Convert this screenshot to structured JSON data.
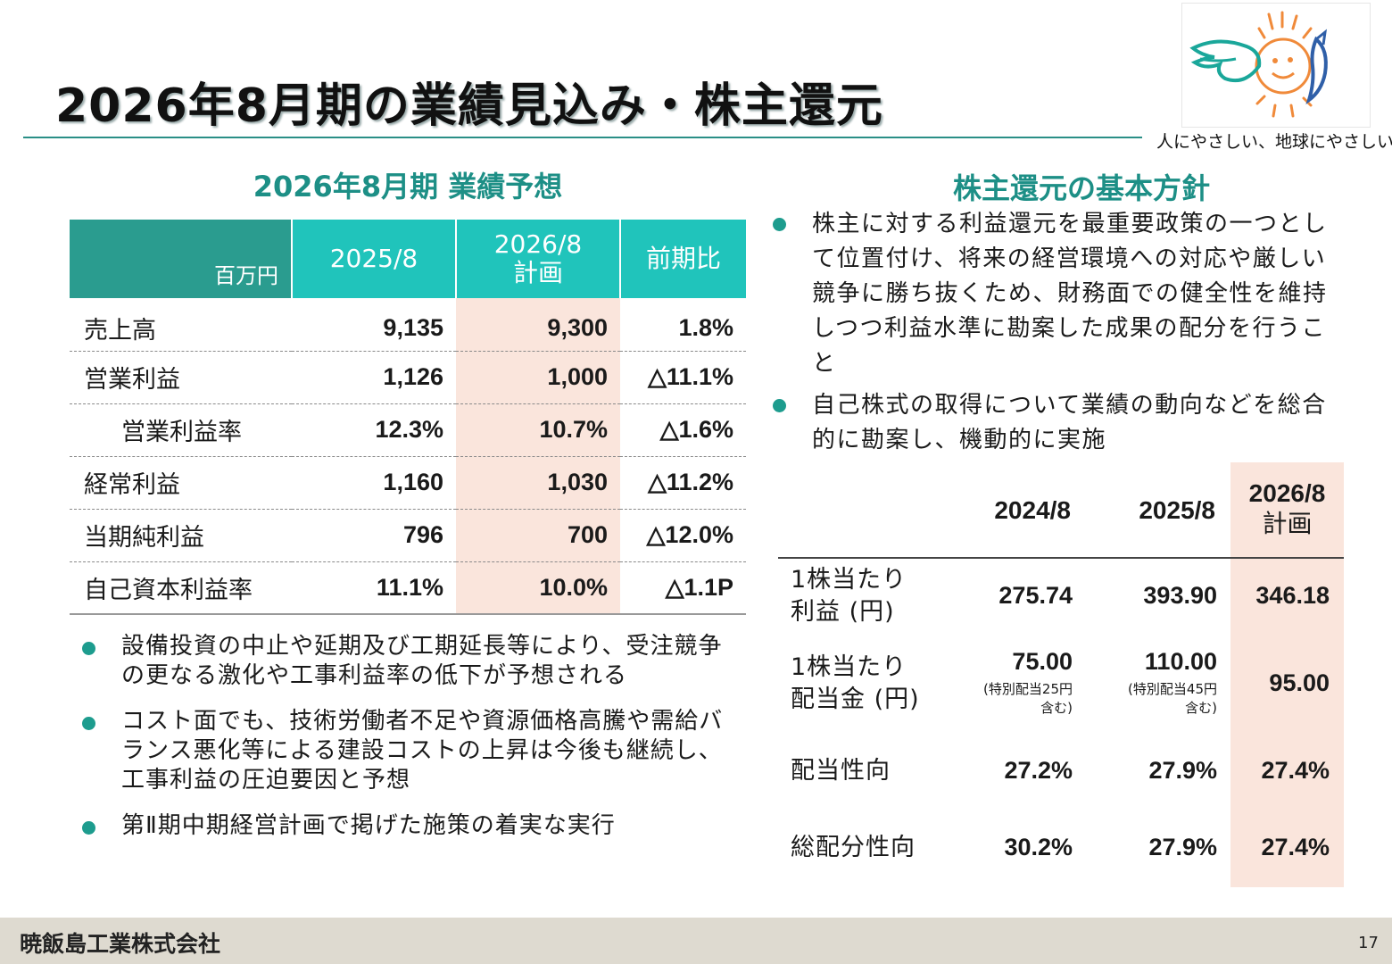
{
  "header": {
    "title": "2026年8月期の業績見込み・株主還元",
    "tagline": "人にやさしい、地球にやさしい。",
    "colors": {
      "accent": "#2a9c8f",
      "header_cell": "#20c4bb",
      "plan_highlight": "#fae5dc"
    }
  },
  "forecast": {
    "heading": "2026年8月期 業績予想",
    "columns": {
      "unit": "百万円",
      "c2025": "2025/8",
      "c2026_line1": "2026/8",
      "c2026_line2": "計画",
      "yoy": "前期比"
    },
    "rows": [
      {
        "label": "売上高",
        "v2025": "9,135",
        "v2026": "9,300",
        "yoy": "1.8%"
      },
      {
        "label": "営業利益",
        "v2025": "1,126",
        "v2026": "1,000",
        "yoy": "△11.1%"
      },
      {
        "label": "営業利益率",
        "v2025": "12.3%",
        "v2026": "10.7%",
        "yoy": "△1.6%"
      },
      {
        "label": "経常利益",
        "v2025": "1,160",
        "v2026": "1,030",
        "yoy": "△11.2%"
      },
      {
        "label": "当期純利益",
        "v2025": "796",
        "v2026": "700",
        "yoy": "△12.0%"
      },
      {
        "label": "自己資本利益率",
        "v2025": "11.1%",
        "v2026": "10.0%",
        "yoy": "△1.1P"
      }
    ],
    "bullets": [
      "設備投資の中止や延期及び工期延長等により、受注競争の更なる激化や工事利益率の低下が予想される",
      "コスト面でも、技術労働者不足や資源価格高騰や需給バランス悪化等による建設コストの上昇は今後も継続し、工事利益の圧迫要因と予想",
      "第Ⅱ期中期経営計画で掲げた施策の着実な実行"
    ]
  },
  "shareholder": {
    "heading": "株主還元の基本方針",
    "bullets": [
      "株主に対する利益還元を最重要政策の一つとして位置付け、将来の経営環境への対応や厳しい競争に勝ち抜くため、財務面での健全性を維持しつつ利益水準に勘案した成果の配分を行うこと",
      "自己株式の取得について業績の動向などを総合的に勘案し、機動的に実施"
    ],
    "columns": {
      "c2024": "2024/8",
      "c2025": "2025/8",
      "c2026_line1": "2026/8",
      "c2026_line2": "計画"
    },
    "rows": [
      {
        "label_line1": "1株当たり",
        "label_line2": "利益 (円)",
        "v2024": "275.74",
        "v2025": "393.90",
        "v2026": "346.18"
      },
      {
        "label_line1": "1株当たり",
        "label_line2": "配当金 (円)",
        "v2024": "75.00",
        "v2024_note1": "(特別配当25円",
        "v2024_note2": "含む)",
        "v2025": "110.00",
        "v2025_note1": "(特別配当45円",
        "v2025_note2": "含む)",
        "v2026": "95.00"
      },
      {
        "label_line1": "配当性向",
        "v2024": "27.2%",
        "v2025": "27.9%",
        "v2026": "27.4%"
      },
      {
        "label_line1": "総配分性向",
        "v2024": "30.2%",
        "v2025": "27.9%",
        "v2026": "27.4%"
      }
    ]
  },
  "footer": {
    "company": "暁飯島工業株式会社",
    "page": "17"
  }
}
